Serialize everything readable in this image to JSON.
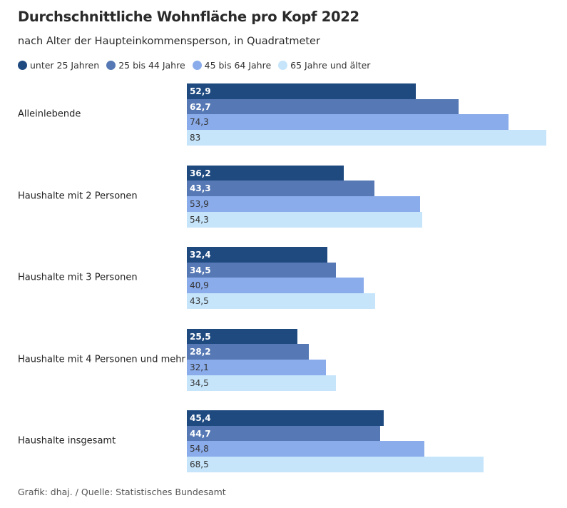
{
  "header": {
    "title": "Durchschnittliche Wohnfläche pro Kopf 2022",
    "subtitle": "nach Alter der Haupteinkommensperson, in Quadratmeter"
  },
  "legend": [
    {
      "label": "unter 25 Jahren",
      "color": "#1f4a80"
    },
    {
      "label": "25 bis 44 Jahre",
      "color": "#5679b5"
    },
    {
      "label": "45 bis 64 Jahre",
      "color": "#8aaceb"
    },
    {
      "label": "65 Jahre und älter",
      "color": "#c6e5fb"
    }
  ],
  "source": "Grafik: dhaj. / Quelle: Statistisches Bundesamt",
  "chart_data": {
    "type": "bar",
    "orientation": "horizontal",
    "title": "Durchschnittliche Wohnfläche pro Kopf 2022",
    "subtitle": "nach Alter der Haupteinkommensperson, in Quadratmeter",
    "xlabel": "",
    "ylabel": "",
    "xlim": [
      0,
      83
    ],
    "grid": false,
    "legend_position": "top-left",
    "categories": [
      "Alleinlebende",
      "Haushalte mit 2 Personen",
      "Haushalte mit 3 Personen",
      "Haushalte mit 4 Personen und mehr",
      "Haushalte insgesamt"
    ],
    "series": [
      {
        "name": "unter 25 Jahren",
        "color": "#1f4a80",
        "label_color": "#ffffff",
        "values": [
          52.9,
          36.2,
          32.4,
          25.5,
          45.4
        ],
        "labels": [
          "52,9",
          "36,2",
          "32,4",
          "25,5",
          "45,4"
        ]
      },
      {
        "name": "25 bis 44 Jahre",
        "color": "#5679b5",
        "label_color": "#ffffff",
        "values": [
          62.7,
          43.3,
          34.5,
          28.2,
          44.7
        ],
        "labels": [
          "62,7",
          "43,3",
          "34,5",
          "28,2",
          "44,7"
        ]
      },
      {
        "name": "45 bis 64 Jahre",
        "color": "#8aaceb",
        "label_color": "#333333",
        "values": [
          74.3,
          53.9,
          40.9,
          32.1,
          54.8
        ],
        "labels": [
          "74,3",
          "53,9",
          "40,9",
          "32,1",
          "54,8"
        ]
      },
      {
        "name": "65 Jahre und älter",
        "color": "#c6e5fb",
        "label_color": "#333333",
        "values": [
          83,
          54.3,
          43.5,
          34.5,
          68.5
        ],
        "labels": [
          "83",
          "54,3",
          "43,5",
          "34,5",
          "68,5"
        ]
      }
    ]
  }
}
